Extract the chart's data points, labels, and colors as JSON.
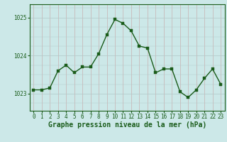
{
  "x": [
    0,
    1,
    2,
    3,
    4,
    5,
    6,
    7,
    8,
    9,
    10,
    11,
    12,
    13,
    14,
    15,
    16,
    17,
    18,
    19,
    20,
    21,
    22,
    23
  ],
  "y": [
    1023.1,
    1023.1,
    1023.15,
    1023.6,
    1023.75,
    1023.55,
    1023.7,
    1023.7,
    1024.05,
    1024.55,
    1024.95,
    1024.85,
    1024.65,
    1024.25,
    1024.2,
    1023.55,
    1023.65,
    1023.65,
    1023.05,
    1022.9,
    1023.1,
    1023.4,
    1023.65,
    1023.25
  ],
  "line_color": "#1a5c1a",
  "marker_color": "#1a5c1a",
  "bg_color": "#cce8e8",
  "vgrid_color": "#c8b0b0",
  "hgrid_color": "#b0c8c8",
  "xlabel": "Graphe pression niveau de la mer (hPa)",
  "xlabel_fontsize": 7,
  "xlabel_color": "#1a5c1a",
  "yticks": [
    1023,
    1024,
    1025
  ],
  "ylim": [
    1022.55,
    1025.35
  ],
  "xlim": [
    -0.5,
    23.5
  ],
  "xticks": [
    0,
    1,
    2,
    3,
    4,
    5,
    6,
    7,
    8,
    9,
    10,
    11,
    12,
    13,
    14,
    15,
    16,
    17,
    18,
    19,
    20,
    21,
    22,
    23
  ],
  "tick_fontsize": 5.5,
  "tick_color": "#1a5c1a",
  "border_color": "#1a5c1a",
  "marker_size": 2.5,
  "line_width": 1.0
}
